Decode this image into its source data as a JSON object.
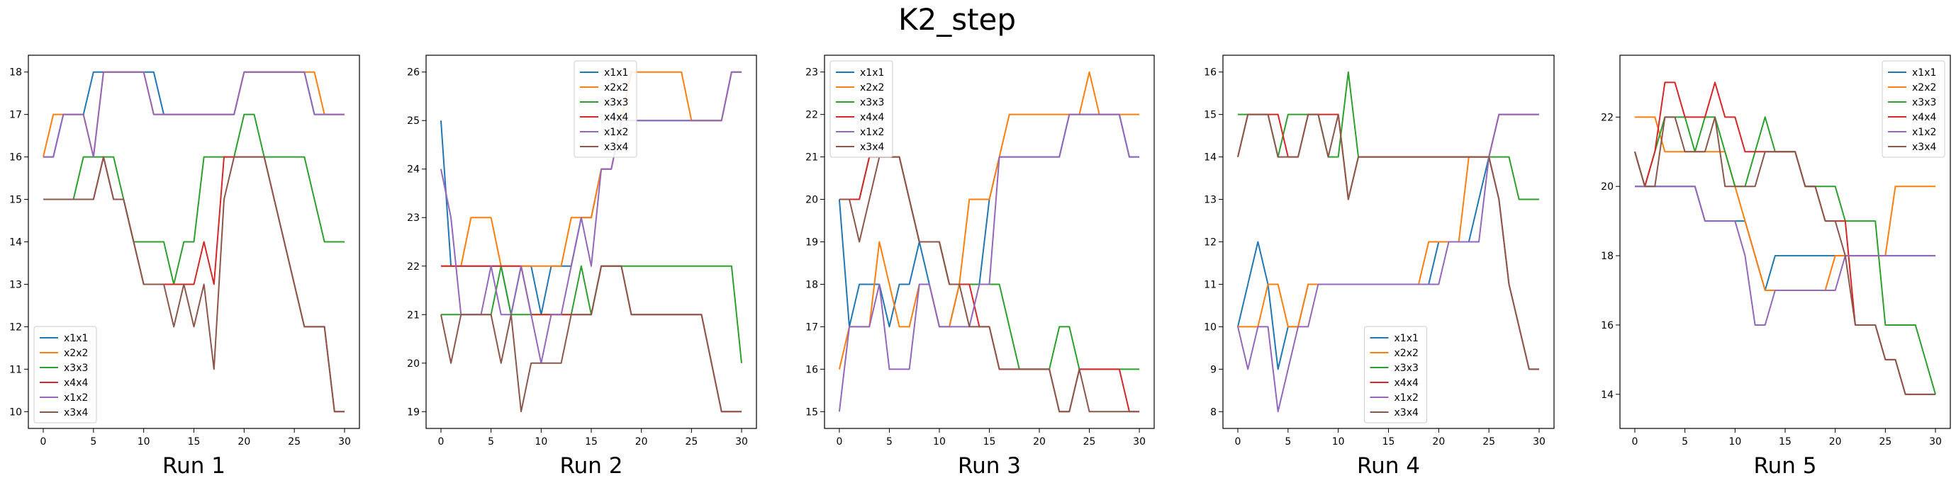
{
  "figure": {
    "title": "K2_step"
  },
  "colors": {
    "x1x1": "#1f77b4",
    "x2x2": "#ff7f0e",
    "x3x3": "#2ca02c",
    "x4x4": "#d62728",
    "x1x2": "#9467bd",
    "x3x4": "#8c564b"
  },
  "chart_data": [
    {
      "type": "line",
      "title": "Run 1",
      "xlim": [
        0,
        30
      ],
      "ylim": [
        10,
        18
      ],
      "xticks": [
        0,
        5,
        10,
        15,
        20,
        25,
        30
      ],
      "yticks": [
        10,
        11,
        12,
        13,
        14,
        15,
        16,
        17,
        18
      ],
      "legend": "lower-left",
      "series": [
        {
          "name": "x1x1",
          "values": [
            16,
            16,
            17,
            17,
            17,
            18,
            18,
            18,
            18,
            18,
            18,
            18,
            17,
            17,
            17,
            17,
            17,
            17,
            17,
            17,
            18,
            18,
            18,
            18,
            18,
            18,
            18,
            17,
            17,
            17,
            17
          ]
        },
        {
          "name": "x2x2",
          "values": [
            16,
            17,
            17,
            17,
            17,
            16,
            18,
            18,
            18,
            18,
            18,
            17,
            17,
            17,
            17,
            17,
            17,
            17,
            17,
            17,
            18,
            18,
            18,
            18,
            18,
            18,
            18,
            18,
            17,
            17,
            17
          ]
        },
        {
          "name": "x3x3",
          "values": [
            15,
            15,
            15,
            15,
            16,
            16,
            16,
            16,
            15,
            14,
            14,
            14,
            14,
            13,
            14,
            14,
            16,
            16,
            16,
            16,
            17,
            17,
            16,
            16,
            16,
            16,
            16,
            15,
            14,
            14,
            14
          ]
        },
        {
          "name": "x4x4",
          "values": [
            15,
            15,
            15,
            15,
            15,
            15,
            16,
            15,
            15,
            14,
            13,
            13,
            13,
            13,
            13,
            13,
            14,
            13,
            16,
            16,
            16,
            16,
            16,
            15,
            14,
            13,
            12,
            12,
            12,
            10,
            10
          ]
        },
        {
          "name": "x1x2",
          "values": [
            16,
            16,
            17,
            17,
            17,
            16,
            18,
            18,
            18,
            18,
            18,
            17,
            17,
            17,
            17,
            17,
            17,
            17,
            17,
            17,
            18,
            18,
            18,
            18,
            18,
            18,
            18,
            17,
            17,
            17,
            17
          ]
        },
        {
          "name": "x3x4",
          "values": [
            15,
            15,
            15,
            15,
            15,
            15,
            16,
            15,
            15,
            14,
            13,
            13,
            13,
            12,
            13,
            12,
            13,
            11,
            15,
            16,
            16,
            16,
            16,
            15,
            14,
            13,
            12,
            12,
            12,
            10,
            10
          ]
        }
      ],
      "xlabel_text": "Run 1"
    },
    {
      "type": "line",
      "title": "Run 2",
      "xlim": [
        0,
        30
      ],
      "ylim": [
        19,
        26
      ],
      "xticks": [
        0,
        5,
        10,
        15,
        20,
        25,
        30
      ],
      "yticks": [
        19,
        20,
        21,
        22,
        23,
        24,
        25,
        26
      ],
      "legend": "upper-center",
      "series": [
        {
          "name": "x1x1",
          "values": [
            25,
            22,
            22,
            22,
            22,
            22,
            22,
            21,
            22,
            22,
            21,
            22,
            22,
            22,
            23,
            23,
            24,
            24,
            25,
            25,
            25,
            25,
            25,
            25,
            25,
            25,
            25,
            25,
            25,
            26,
            26
          ]
        },
        {
          "name": "x2x2",
          "values": [
            22,
            22,
            22,
            23,
            23,
            23,
            22,
            22,
            22,
            22,
            22,
            22,
            22,
            23,
            23,
            23,
            24,
            24,
            25,
            26,
            26,
            26,
            26,
            26,
            26,
            25,
            25,
            25,
            25,
            26,
            26
          ]
        },
        {
          "name": "x3x3",
          "values": [
            21,
            21,
            21,
            21,
            21,
            21,
            22,
            21,
            21,
            21,
            21,
            21,
            21,
            21,
            22,
            21,
            22,
            22,
            22,
            22,
            22,
            22,
            22,
            22,
            22,
            22,
            22,
            22,
            22,
            22,
            20
          ]
        },
        {
          "name": "x4x4",
          "values": [
            22,
            22,
            22,
            22,
            22,
            22,
            22,
            22,
            22,
            21,
            21,
            21,
            21,
            21,
            21,
            21,
            22,
            22,
            22,
            21,
            21,
            21,
            21,
            21,
            21,
            21,
            21,
            20,
            19,
            19,
            19
          ]
        },
        {
          "name": "x1x2",
          "values": [
            24,
            23,
            21,
            21,
            21,
            22,
            21,
            21,
            22,
            21,
            20,
            21,
            21,
            22,
            23,
            22,
            24,
            24,
            25,
            25,
            25,
            25,
            25,
            25,
            25,
            25,
            25,
            25,
            25,
            26,
            26
          ]
        },
        {
          "name": "x3x4",
          "values": [
            21,
            20,
            21,
            21,
            21,
            21,
            20,
            21,
            19,
            20,
            20,
            20,
            20,
            21,
            21,
            21,
            22,
            22,
            22,
            21,
            21,
            21,
            21,
            21,
            21,
            21,
            21,
            20,
            19,
            19,
            19
          ]
        }
      ],
      "xlabel_text": "Run 2"
    },
    {
      "type": "line",
      "title": "Run 3",
      "xlim": [
        0,
        30
      ],
      "ylim": [
        15,
        23
      ],
      "xticks": [
        0,
        5,
        10,
        15,
        20,
        25,
        30
      ],
      "yticks": [
        15,
        16,
        17,
        18,
        19,
        20,
        21,
        22,
        23
      ],
      "legend": "upper-left",
      "series": [
        {
          "name": "x1x1",
          "values": [
            20,
            17,
            18,
            18,
            18,
            17,
            18,
            18,
            19,
            18,
            17,
            17,
            18,
            18,
            18,
            20,
            21,
            21,
            21,
            21,
            21,
            21,
            21,
            22,
            22,
            22,
            22,
            22,
            22,
            21,
            21
          ]
        },
        {
          "name": "x2x2",
          "values": [
            16,
            17,
            17,
            17,
            19,
            18,
            17,
            17,
            18,
            18,
            17,
            17,
            18,
            20,
            20,
            20,
            21,
            22,
            22,
            22,
            22,
            22,
            22,
            22,
            22,
            23,
            22,
            22,
            22,
            22,
            22
          ]
        },
        {
          "name": "x3x3",
          "values": [
            20,
            20,
            20,
            21,
            21,
            21,
            21,
            20,
            19,
            19,
            19,
            18,
            18,
            18,
            18,
            18,
            18,
            17,
            16,
            16,
            16,
            16,
            17,
            17,
            16,
            16,
            16,
            16,
            16,
            16,
            16
          ]
        },
        {
          "name": "x4x4",
          "values": [
            20,
            20,
            20,
            21,
            21,
            21,
            21,
            20,
            19,
            19,
            19,
            18,
            18,
            18,
            17,
            17,
            16,
            16,
            16,
            16,
            16,
            16,
            15,
            15,
            16,
            16,
            16,
            16,
            16,
            15,
            15
          ]
        },
        {
          "name": "x1x2",
          "values": [
            15,
            17,
            17,
            17,
            18,
            16,
            16,
            16,
            18,
            18,
            17,
            17,
            17,
            17,
            18,
            18,
            21,
            21,
            21,
            21,
            21,
            21,
            21,
            22,
            22,
            22,
            22,
            22,
            22,
            21,
            21
          ]
        },
        {
          "name": "x3x4",
          "values": [
            20,
            20,
            19,
            20,
            21,
            21,
            21,
            20,
            19,
            19,
            19,
            18,
            18,
            17,
            17,
            17,
            16,
            16,
            16,
            16,
            16,
            16,
            15,
            15,
            16,
            15,
            15,
            15,
            15,
            15,
            15
          ]
        }
      ],
      "xlabel_text": "Run 3"
    },
    {
      "type": "line",
      "title": "Run 4",
      "xlim": [
        0,
        30
      ],
      "ylim": [
        8,
        16
      ],
      "xticks": [
        0,
        5,
        10,
        15,
        20,
        25,
        30
      ],
      "yticks": [
        8,
        9,
        10,
        11,
        12,
        13,
        14,
        15,
        16
      ],
      "legend": "lower-center",
      "series": [
        {
          "name": "x1x1",
          "values": [
            10,
            11,
            12,
            11,
            9,
            10,
            10,
            11,
            11,
            11,
            11,
            11,
            11,
            11,
            11,
            11,
            11,
            11,
            11,
            11,
            12,
            12,
            12,
            12,
            13,
            14,
            15,
            15,
            15,
            15,
            15
          ]
        },
        {
          "name": "x2x2",
          "values": [
            10,
            10,
            10,
            11,
            11,
            10,
            10,
            11,
            11,
            11,
            11,
            11,
            11,
            11,
            11,
            11,
            11,
            11,
            11,
            12,
            12,
            12,
            12,
            14,
            14,
            14,
            15,
            15,
            15,
            15,
            15
          ]
        },
        {
          "name": "x3x3",
          "values": [
            15,
            15,
            15,
            15,
            14,
            15,
            15,
            15,
            15,
            14,
            14,
            16,
            14,
            14,
            14,
            14,
            14,
            14,
            14,
            14,
            14,
            14,
            14,
            14,
            14,
            14,
            14,
            14,
            13,
            13,
            13
          ]
        },
        {
          "name": "x4x4",
          "values": [
            14,
            15,
            15,
            15,
            15,
            14,
            14,
            15,
            15,
            15,
            15,
            13,
            14,
            14,
            14,
            14,
            14,
            14,
            14,
            14,
            14,
            14,
            14,
            14,
            14,
            14,
            13,
            11,
            10,
            9,
            9
          ]
        },
        {
          "name": "x1x2",
          "values": [
            10,
            9,
            10,
            10,
            8,
            9,
            10,
            10,
            11,
            11,
            11,
            11,
            11,
            11,
            11,
            11,
            11,
            11,
            11,
            11,
            11,
            12,
            12,
            12,
            12,
            14,
            15,
            15,
            15,
            15,
            15
          ]
        },
        {
          "name": "x3x4",
          "values": [
            14,
            15,
            15,
            15,
            14,
            14,
            14,
            15,
            15,
            14,
            15,
            13,
            14,
            14,
            14,
            14,
            14,
            14,
            14,
            14,
            14,
            14,
            14,
            14,
            14,
            14,
            13,
            11,
            10,
            9,
            9
          ]
        }
      ],
      "xlabel_text": "Run 4"
    },
    {
      "type": "line",
      "title": "Run 5",
      "xlim": [
        0,
        30
      ],
      "ylim": [
        13.5,
        23.3
      ],
      "xticks": [
        0,
        5,
        10,
        15,
        20,
        25,
        30
      ],
      "yticks": [
        14,
        16,
        18,
        20,
        22
      ],
      "legend": "upper-right",
      "series": [
        {
          "name": "x1x1",
          "values": [
            20,
            20,
            20,
            20,
            20,
            20,
            20,
            19,
            19,
            19,
            19,
            19,
            18,
            17,
            18,
            18,
            18,
            18,
            18,
            18,
            18,
            18,
            18,
            18,
            18,
            18,
            18,
            18,
            18,
            18,
            18
          ]
        },
        {
          "name": "x2x2",
          "values": [
            22,
            22,
            22,
            21,
            21,
            21,
            21,
            21,
            21,
            21,
            20,
            19,
            18,
            17,
            17,
            17,
            17,
            17,
            17,
            17,
            18,
            18,
            18,
            18,
            18,
            18,
            20,
            20,
            20,
            20,
            20
          ]
        },
        {
          "name": "x3x3",
          "values": [
            21,
            20,
            21,
            22,
            22,
            22,
            21,
            22,
            22,
            21,
            20,
            20,
            21,
            22,
            21,
            21,
            21,
            20,
            20,
            20,
            20,
            19,
            19,
            19,
            19,
            16,
            16,
            16,
            16,
            15,
            14
          ]
        },
        {
          "name": "x4x4",
          "values": [
            21,
            20,
            21,
            23,
            23,
            22,
            22,
            22,
            23,
            22,
            22,
            21,
            21,
            21,
            21,
            21,
            21,
            20,
            20,
            19,
            19,
            19,
            16,
            16,
            16,
            15,
            15,
            14,
            14,
            14,
            14
          ]
        },
        {
          "name": "x1x2",
          "values": [
            20,
            20,
            20,
            20,
            20,
            20,
            20,
            19,
            19,
            19,
            19,
            18,
            16,
            16,
            17,
            17,
            17,
            17,
            17,
            17,
            17,
            18,
            18,
            18,
            18,
            18,
            18,
            18,
            18,
            18,
            18
          ]
        },
        {
          "name": "x3x4",
          "values": [
            21,
            20,
            20,
            22,
            22,
            21,
            21,
            21,
            22,
            20,
            20,
            20,
            20,
            21,
            21,
            21,
            21,
            20,
            20,
            19,
            19,
            18,
            16,
            16,
            16,
            15,
            15,
            14,
            14,
            14,
            14
          ]
        }
      ],
      "xlabel_text": "Run 5"
    }
  ]
}
